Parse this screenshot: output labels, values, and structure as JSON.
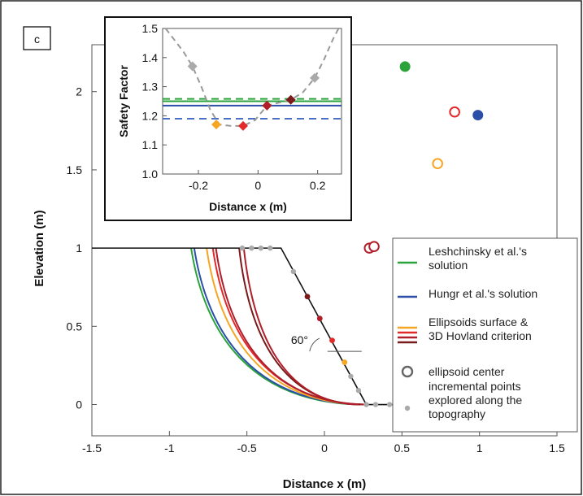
{
  "panel_label": "c",
  "colors": {
    "green": "#2aa33a",
    "blue": "#2b4fa8",
    "orange": "#f5a623",
    "red": "#e32a2a",
    "crimson": "#b01e2a",
    "darkred": "#7a1a1a",
    "gray": "#aaaaaa",
    "darkgray": "#666666",
    "dashblue": "#4a6fc7",
    "dashgray": "#999999"
  },
  "chart_data": [
    {
      "type": "line",
      "xlabel": "Distance x (m)",
      "ylabel": "Elevation (m)",
      "xlim": [
        -1.5,
        1.5
      ],
      "ylim": [
        -0.2,
        2.3
      ],
      "xticks": [
        "-1.5",
        "-1",
        "-0.5",
        "0",
        "0.5",
        "1",
        "1.5"
      ],
      "xtick_values": [
        -1.5,
        -1,
        -0.5,
        0,
        0.5,
        1,
        1.5
      ],
      "yticks": [
        "0",
        "0.5",
        "1",
        "1.5",
        "2"
      ],
      "ytick_values": [
        0,
        0.5,
        1,
        1.5,
        2
      ],
      "grid": false,
      "legend_position": "bottom-right",
      "topography": [
        [
          -1.5,
          1.0
        ],
        [
          -0.28,
          1.0
        ],
        [
          0.27,
          0.0
        ],
        [
          1.5,
          0.0
        ]
      ],
      "slope_angle_label": "60°",
      "surfaces": [
        {
          "color": "green",
          "top_x": -0.86,
          "bottom_x": 0.24
        },
        {
          "color": "blue",
          "top_x": -0.84,
          "bottom_x": 0.25
        },
        {
          "color": "orange",
          "top_x": -0.76,
          "bottom_x": 0.25
        },
        {
          "color": "red",
          "top_x": -0.72,
          "bottom_x": 0.27
        },
        {
          "color": "crimson",
          "top_x": -0.7,
          "bottom_x": 0.26
        },
        {
          "color": "darkred",
          "top_x": -0.55,
          "bottom_x": 0.23
        },
        {
          "color": "crimson",
          "top_x": -0.52,
          "bottom_x": 0.22
        }
      ],
      "centers": [
        {
          "x": 0.52,
          "y": 2.16,
          "color": "green",
          "filled": true
        },
        {
          "x": 0.99,
          "y": 1.85,
          "color": "blue",
          "filled": true
        },
        {
          "x": 0.84,
          "y": 1.87,
          "color": "red",
          "filled": false
        },
        {
          "x": 0.73,
          "y": 1.54,
          "color": "orange",
          "filled": false
        },
        {
          "x": 0.29,
          "y": 1.0,
          "color": "crimson",
          "filled": false
        },
        {
          "x": 0.32,
          "y": 1.01,
          "color": "crimson",
          "filled": false
        }
      ],
      "incremental_points": {
        "gray": [
          [
            -0.53,
            1.0
          ],
          [
            -0.47,
            1.0
          ],
          [
            -0.41,
            1.0
          ],
          [
            -0.35,
            1.0
          ],
          [
            -0.2,
            0.85
          ],
          [
            0.17,
            0.18
          ],
          [
            0.22,
            0.09
          ],
          [
            0.27,
            0.0
          ],
          [
            0.33,
            0.0
          ],
          [
            0.42,
            0.0
          ]
        ],
        "colored": [
          {
            "x": -0.11,
            "y": 0.69,
            "color": "darkred"
          },
          {
            "x": -0.03,
            "y": 0.55,
            "color": "crimson"
          },
          {
            "x": 0.05,
            "y": 0.41,
            "color": "red"
          },
          {
            "x": 0.13,
            "y": 0.27,
            "color": "orange"
          }
        ]
      },
      "legend": [
        {
          "label_lines": [
            "Leshchinsky et al.'s",
            "solution"
          ],
          "swatch": "line",
          "colors": [
            "green"
          ]
        },
        {
          "label_lines": [
            "Hungr et al.'s solution"
          ],
          "swatch": "line",
          "colors": [
            "blue"
          ]
        },
        {
          "label_lines": [
            "Ellipsoids surface &",
            "3D Hovland criterion"
          ],
          "swatch": "lines",
          "colors": [
            "orange",
            "red",
            "crimson",
            "darkred"
          ]
        },
        {
          "label_lines": [
            "ellipsoid center"
          ],
          "swatch": "ring",
          "colors": [
            "darkgray"
          ]
        },
        {
          "label_lines": [
            "incremental points",
            "explored along the",
            "topography"
          ],
          "swatch": "dot",
          "colors": [
            "gray"
          ]
        }
      ]
    },
    {
      "type": "line",
      "xlabel": "Distance x (m)",
      "ylabel": "Safety Factor",
      "xlim": [
        -0.32,
        0.28
      ],
      "ylim": [
        1.0,
        1.5
      ],
      "xticks": [
        "-0.2",
        "0",
        "0.2"
      ],
      "xtick_values": [
        -0.2,
        0,
        0.2
      ],
      "yticks": [
        "1.0",
        "1.1",
        "1.2",
        "1.3",
        "1.4",
        "1.5"
      ],
      "ytick_values": [
        1.0,
        1.1,
        1.2,
        1.3,
        1.4,
        1.5
      ],
      "grid": false,
      "hlines": [
        {
          "y": 1.258,
          "color": "green",
          "style": "dashed"
        },
        {
          "y": 1.25,
          "color": "green",
          "style": "solid"
        },
        {
          "y": 1.235,
          "color": "blue",
          "style": "solid"
        },
        {
          "y": 1.19,
          "color": "dashblue",
          "style": "dashed"
        }
      ],
      "curve": {
        "color": "dashgray",
        "style": "dashed",
        "x": [
          -0.31,
          -0.28,
          -0.25,
          -0.22,
          -0.19,
          -0.16,
          -0.13,
          -0.09,
          -0.05,
          -0.01,
          0.03,
          0.07,
          0.11,
          0.15,
          0.19,
          0.22,
          0.25,
          0.27
        ],
        "y": [
          1.5,
          1.46,
          1.42,
          1.37,
          1.3,
          1.22,
          1.17,
          1.165,
          1.165,
          1.185,
          1.235,
          1.245,
          1.255,
          1.28,
          1.33,
          1.39,
          1.46,
          1.5
        ]
      },
      "points": [
        {
          "x": -0.22,
          "y": 1.37,
          "color": "gray"
        },
        {
          "x": -0.14,
          "y": 1.17,
          "color": "orange"
        },
        {
          "x": -0.05,
          "y": 1.165,
          "color": "red"
        },
        {
          "x": 0.03,
          "y": 1.235,
          "color": "crimson"
        },
        {
          "x": 0.11,
          "y": 1.255,
          "color": "darkred"
        },
        {
          "x": 0.19,
          "y": 1.33,
          "color": "gray"
        }
      ]
    }
  ]
}
